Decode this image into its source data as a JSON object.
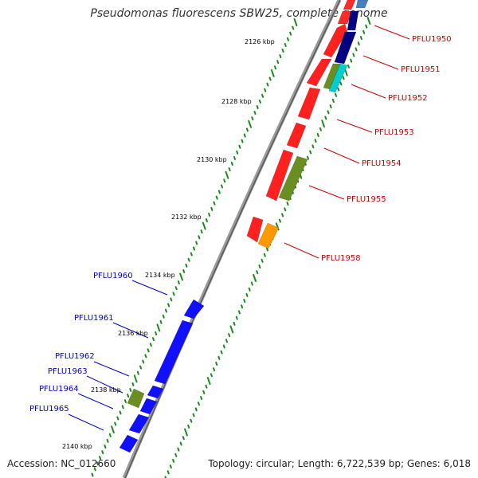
{
  "title": "Pseudomonas fluorescens SBW25, complete genome",
  "footer": {
    "accession": "Accession: NC_012660",
    "summary": "Topology: circular; Length: 6,722,539 bp; Genes: 6,018"
  },
  "colors": {
    "forward_label": "#cc0000",
    "reverse_label": "#0000cc",
    "tick": "#1a8a1a",
    "backbone": "#8c8c8c"
  },
  "ruler": [
    "2126 kbp",
    "2128 kbp",
    "2130 kbp",
    "2132 kbp",
    "2134 kbp",
    "2136 kbp",
    "2138 kbp",
    "2140 kbp"
  ],
  "forward_genes": [
    "PFLU1950",
    "PFLU1951",
    "PFLU1952",
    "PFLU1953",
    "PFLU1954",
    "PFLU1955",
    "PFLU1958"
  ],
  "reverse_genes": [
    "PFLU1960",
    "PFLU1961",
    "PFLU1962",
    "PFLU1963",
    "PFLU1964",
    "PFLU1965"
  ]
}
